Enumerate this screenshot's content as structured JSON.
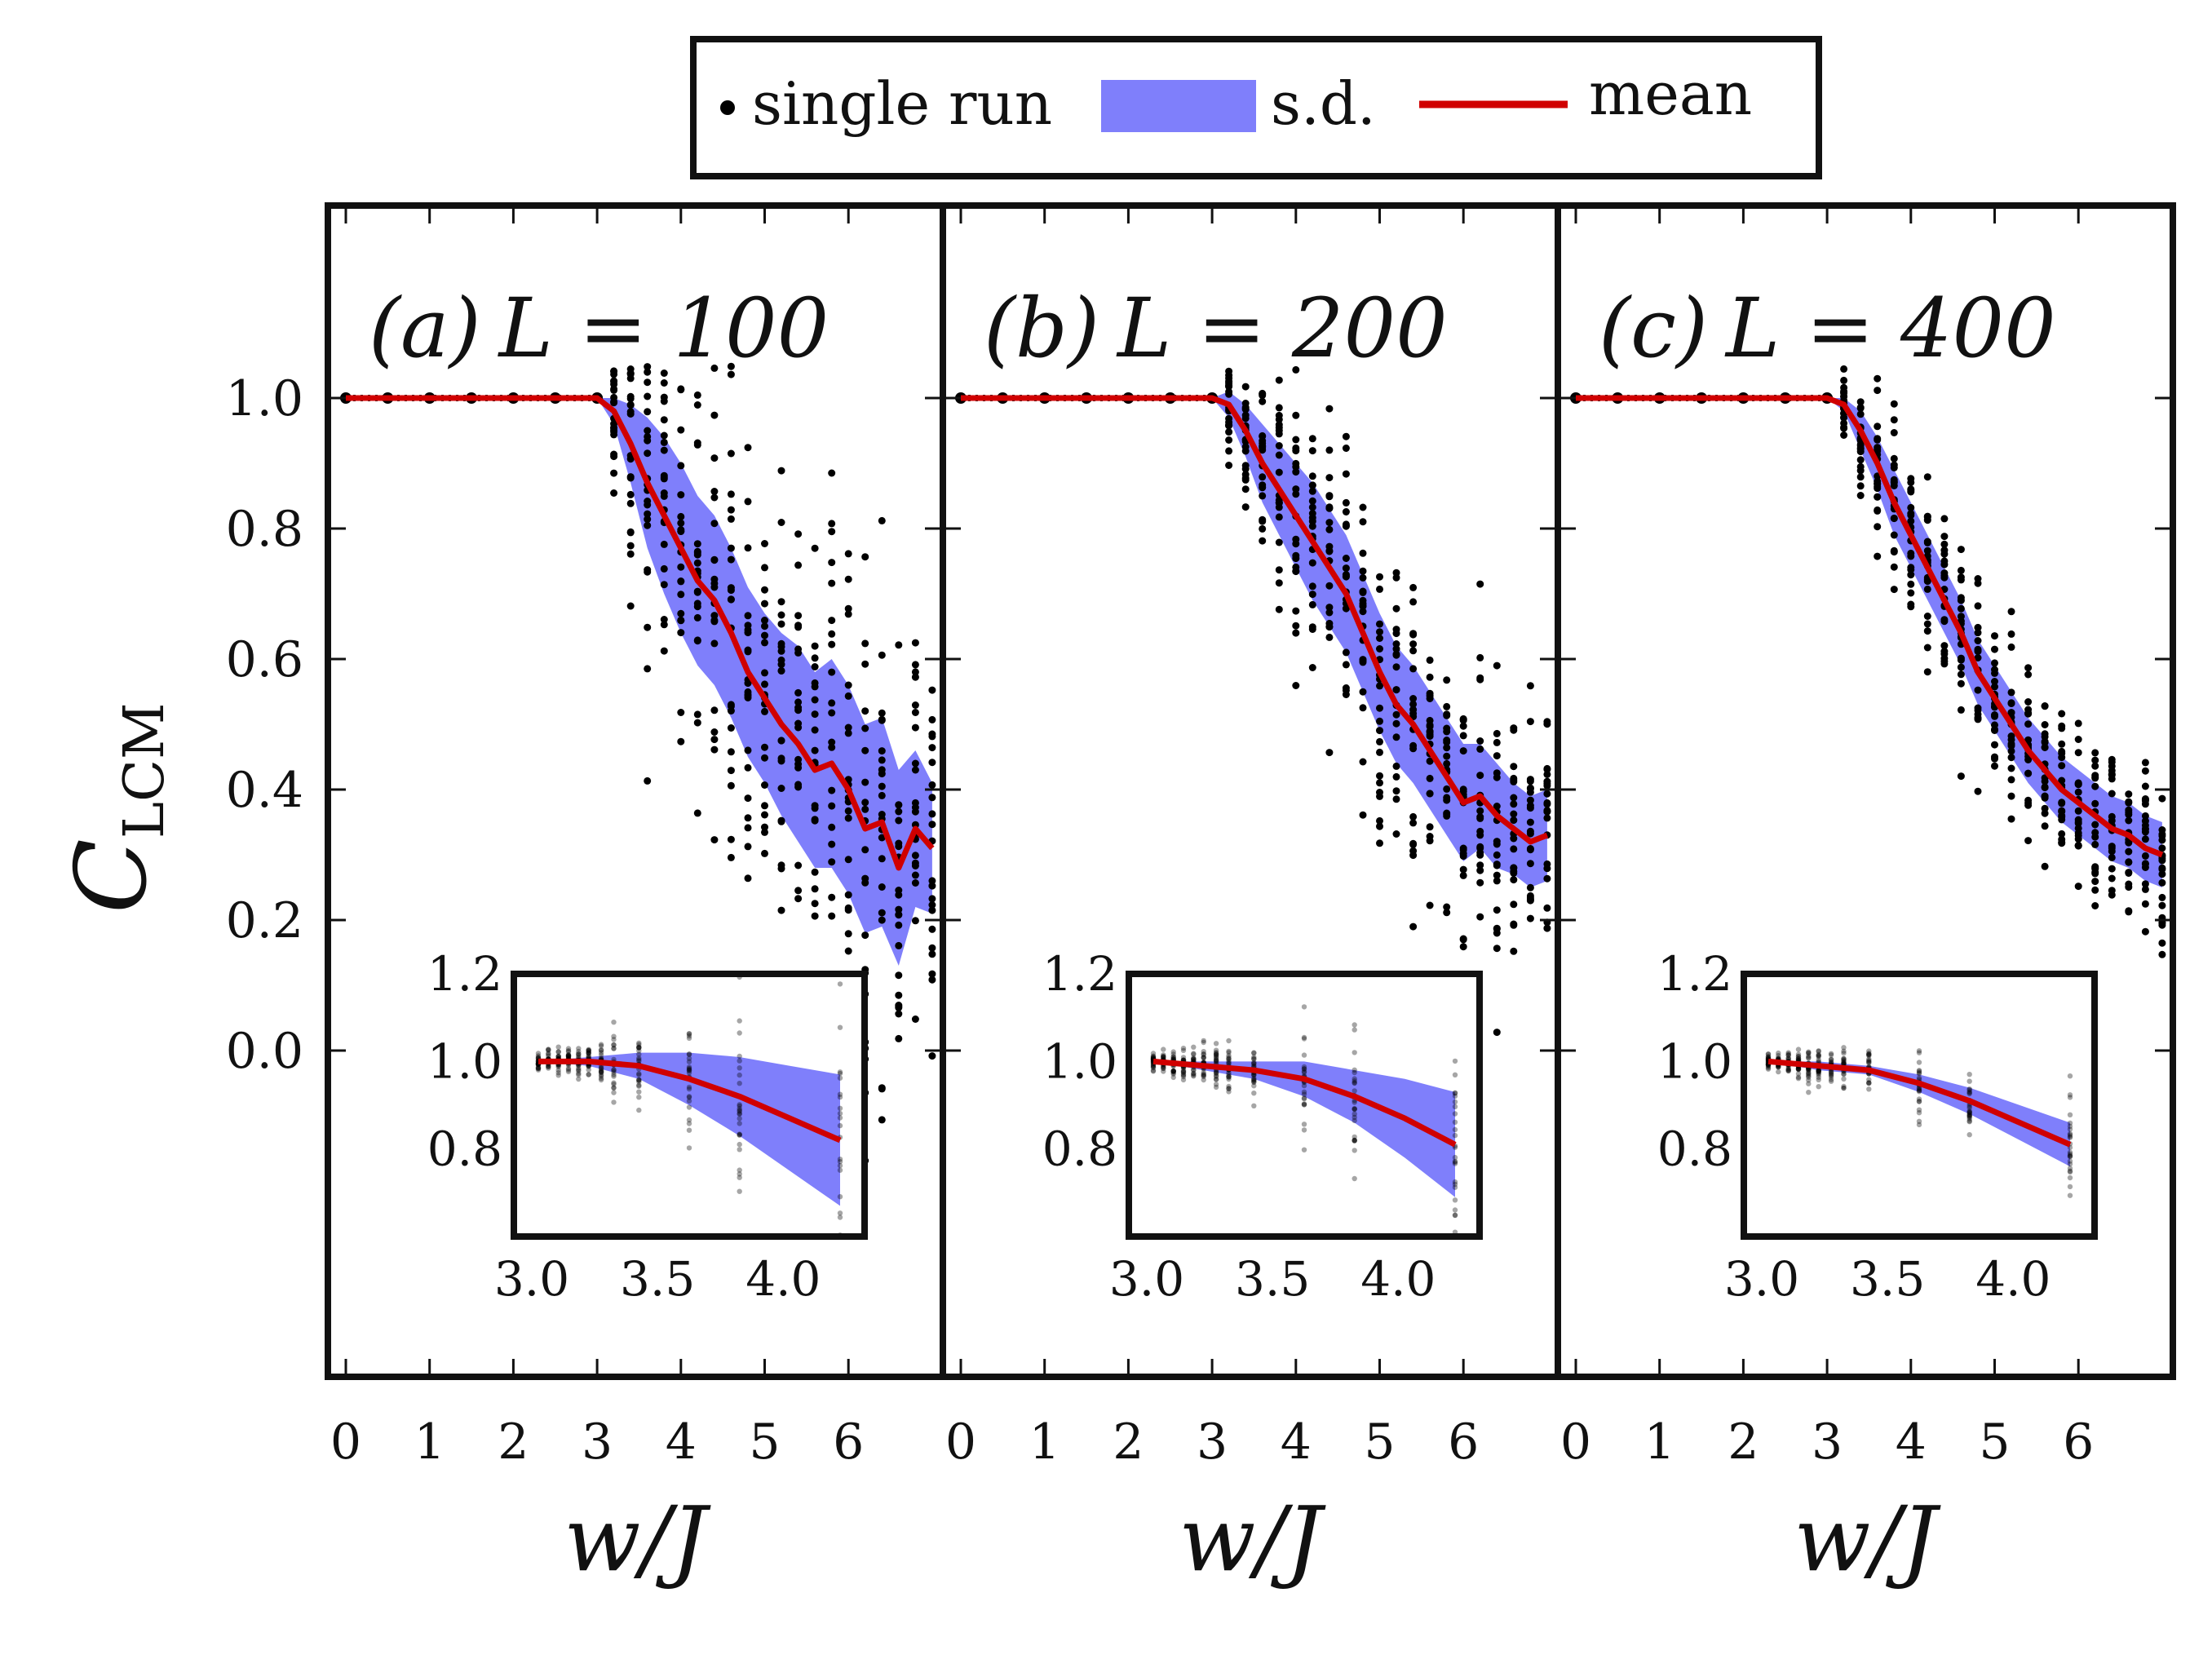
{
  "chart_data": {
    "type": "scatter",
    "ylabel_main": "C",
    "ylabel_sub": "LCM",
    "xlabel": "w/J",
    "x_ticks": [
      "0",
      "1",
      "2",
      "3",
      "4",
      "5",
      "6"
    ],
    "y_ticks": [
      "0.0",
      "0.2",
      "0.4",
      "0.6",
      "0.8",
      "1.0"
    ],
    "xlim": [
      -0.2,
      7.2
    ],
    "ylim": [
      -0.5,
      1.3
    ],
    "legend": {
      "single_run": "single run",
      "sd": "s.d.",
      "mean": "mean",
      "colors": {
        "points": "#000000",
        "sd": "#7f7ffb",
        "mean": "#d00000"
      }
    },
    "inset": {
      "x_ticks": [
        "3.0",
        "3.5",
        "4.0"
      ],
      "y_ticks": [
        "0.8",
        "1.0",
        "1.2"
      ],
      "xlim": [
        2.95,
        4.25
      ],
      "ylim": [
        0.6,
        1.2
      ]
    },
    "panels": [
      {
        "label": "(a)",
        "title_eq": "L = 100",
        "x": [
          0.0,
          0.5,
          1.0,
          1.5,
          2.0,
          2.5,
          3.0,
          3.2,
          3.4,
          3.6,
          3.8,
          4.0,
          4.2,
          4.4,
          4.6,
          4.8,
          5.0,
          5.2,
          5.4,
          5.6,
          5.8,
          6.0,
          6.2,
          6.4,
          6.6,
          6.8,
          7.0
        ],
        "mean": [
          1.0,
          1.0,
          1.0,
          1.0,
          1.0,
          1.0,
          1.0,
          0.98,
          0.93,
          0.87,
          0.82,
          0.77,
          0.72,
          0.69,
          0.64,
          0.58,
          0.54,
          0.5,
          0.47,
          0.43,
          0.44,
          0.4,
          0.34,
          0.35,
          0.28,
          0.34,
          0.31
        ],
        "sd": [
          0.0,
          0.0,
          0.0,
          0.0,
          0.0,
          0.0,
          0.0,
          0.02,
          0.06,
          0.1,
          0.12,
          0.13,
          0.13,
          0.13,
          0.13,
          0.13,
          0.13,
          0.14,
          0.15,
          0.15,
          0.16,
          0.16,
          0.16,
          0.16,
          0.15,
          0.12,
          0.1
        ],
        "spread": 0.26,
        "inset_x": [
          3.0,
          3.2,
          3.4,
          3.6,
          3.8,
          4.0,
          4.2
        ],
        "inset_mean": [
          1.0,
          1.0,
          0.99,
          0.96,
          0.92,
          0.87,
          0.82
        ],
        "inset_sd": [
          0.0,
          0.01,
          0.03,
          0.06,
          0.09,
          0.12,
          0.15
        ]
      },
      {
        "label": "(b)",
        "title_eq": "L = 200",
        "x": [
          0.0,
          0.5,
          1.0,
          1.5,
          2.0,
          2.5,
          3.0,
          3.2,
          3.4,
          3.6,
          3.8,
          4.0,
          4.2,
          4.4,
          4.6,
          4.8,
          5.0,
          5.2,
          5.4,
          5.6,
          5.8,
          6.0,
          6.2,
          6.4,
          6.6,
          6.8,
          7.0
        ],
        "mean": [
          1.0,
          1.0,
          1.0,
          1.0,
          1.0,
          1.0,
          1.0,
          0.99,
          0.95,
          0.9,
          0.86,
          0.82,
          0.78,
          0.74,
          0.7,
          0.64,
          0.58,
          0.53,
          0.5,
          0.46,
          0.42,
          0.38,
          0.39,
          0.36,
          0.34,
          0.32,
          0.33
        ],
        "sd": [
          0.0,
          0.0,
          0.0,
          0.0,
          0.0,
          0.0,
          0.0,
          0.02,
          0.04,
          0.06,
          0.07,
          0.08,
          0.09,
          0.09,
          0.09,
          0.09,
          0.09,
          0.09,
          0.09,
          0.09,
          0.09,
          0.09,
          0.08,
          0.08,
          0.07,
          0.07,
          0.07
        ],
        "spread": 0.18,
        "inset_x": [
          3.0,
          3.2,
          3.4,
          3.6,
          3.8,
          4.0,
          4.2
        ],
        "inset_mean": [
          1.0,
          0.99,
          0.98,
          0.96,
          0.92,
          0.87,
          0.81
        ],
        "inset_sd": [
          0.0,
          0.01,
          0.02,
          0.04,
          0.06,
          0.09,
          0.12
        ]
      },
      {
        "label": "(c)",
        "title_eq": "L = 400",
        "x": [
          0.0,
          0.5,
          1.0,
          1.5,
          2.0,
          2.5,
          3.0,
          3.2,
          3.4,
          3.6,
          3.8,
          4.0,
          4.2,
          4.4,
          4.6,
          4.8,
          5.0,
          5.2,
          5.4,
          5.6,
          5.8,
          6.0,
          6.2,
          6.4,
          6.6,
          6.8,
          7.0
        ],
        "mean": [
          1.0,
          1.0,
          1.0,
          1.0,
          1.0,
          1.0,
          1.0,
          0.99,
          0.95,
          0.9,
          0.84,
          0.79,
          0.74,
          0.69,
          0.64,
          0.58,
          0.54,
          0.5,
          0.46,
          0.43,
          0.4,
          0.38,
          0.36,
          0.34,
          0.33,
          0.31,
          0.3
        ],
        "sd": [
          0.0,
          0.0,
          0.0,
          0.0,
          0.0,
          0.0,
          0.0,
          0.01,
          0.03,
          0.04,
          0.05,
          0.05,
          0.05,
          0.05,
          0.05,
          0.05,
          0.05,
          0.05,
          0.05,
          0.05,
          0.05,
          0.05,
          0.05,
          0.05,
          0.05,
          0.05,
          0.05
        ],
        "spread": 0.12,
        "inset_x": [
          3.0,
          3.2,
          3.4,
          3.6,
          3.8,
          4.0,
          4.2
        ],
        "inset_mean": [
          1.0,
          0.99,
          0.98,
          0.95,
          0.91,
          0.86,
          0.81
        ],
        "inset_sd": [
          0.0,
          0.01,
          0.01,
          0.02,
          0.03,
          0.04,
          0.05
        ]
      }
    ]
  }
}
